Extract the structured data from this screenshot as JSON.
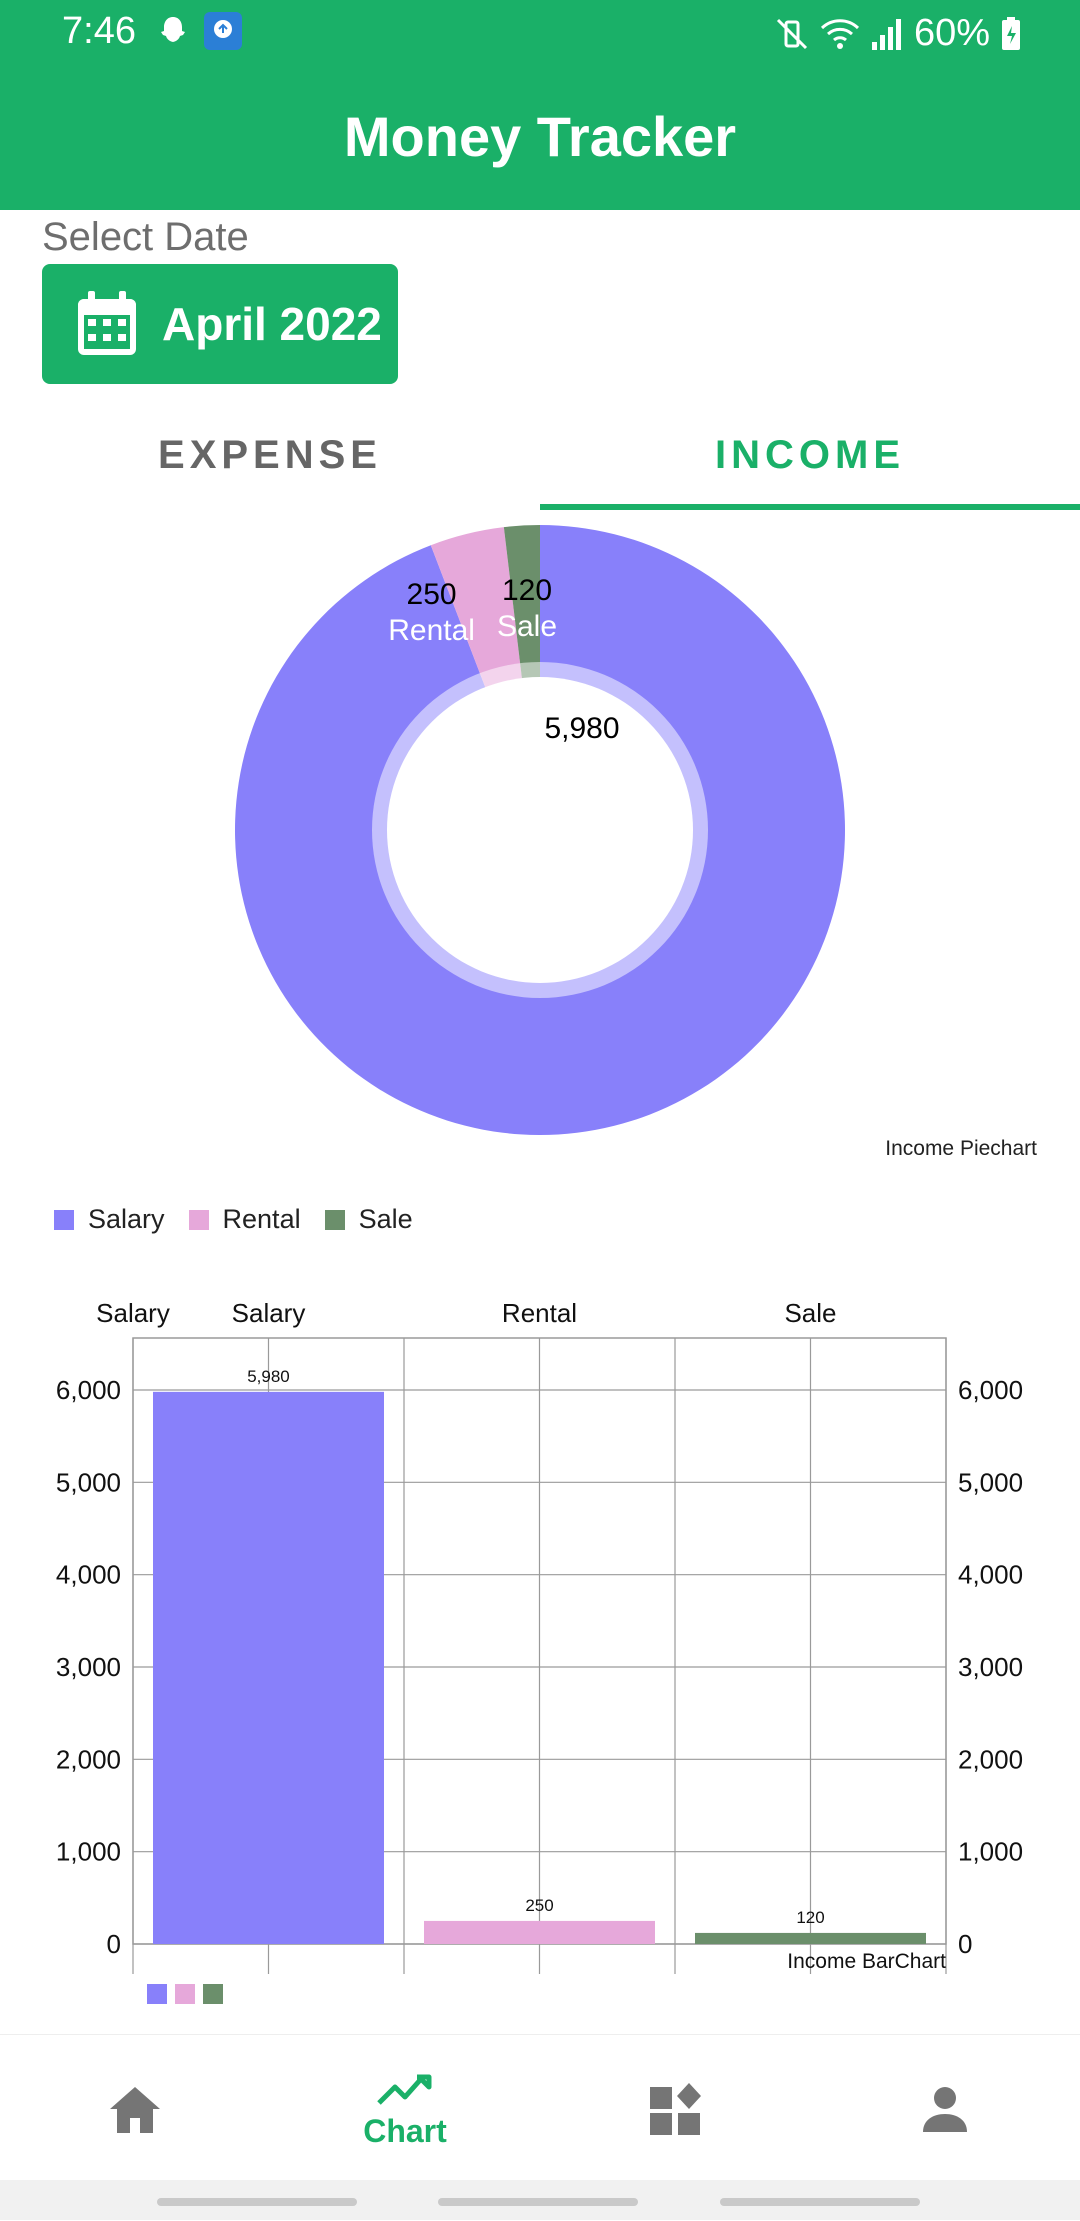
{
  "status_bar": {
    "time": "7:46",
    "battery": "60%",
    "icons": [
      "snapchat-icon",
      "cloud-upload-icon",
      "mute-vibrate-icon",
      "wifi-icon",
      "signal-icon",
      "battery-charging-icon"
    ]
  },
  "app": {
    "title": "Money Tracker"
  },
  "date": {
    "label": "Select Date",
    "value": "April 2022"
  },
  "tabs": [
    {
      "label": "EXPENSE",
      "selected": false
    },
    {
      "label": "INCOME",
      "selected": true
    }
  ],
  "colors": {
    "primary": "#1ab068",
    "salary": "#8880fa",
    "rental": "#e6a8da",
    "sale": "#6b8f6b"
  },
  "pie": {
    "description": "Income Piechart",
    "slices": [
      {
        "label": "Salary",
        "value": 5980,
        "display": "5,980",
        "color": "#8880fa"
      },
      {
        "label": "Rental",
        "value": 250,
        "display": "250",
        "color": "#e6a8da"
      },
      {
        "label": "Sale",
        "value": 120,
        "display": "120",
        "color": "#6b8f6b"
      }
    ]
  },
  "legend": [
    {
      "label": "Salary",
      "color": "#8880fa"
    },
    {
      "label": "Rental",
      "color": "#e6a8da"
    },
    {
      "label": "Sale",
      "color": "#6b8f6b"
    }
  ],
  "chart_data": {
    "type": "bar",
    "description": "Income BarChart",
    "categories": [
      "Salary",
      "Rental",
      "Sale"
    ],
    "top_labels": [
      "Salary",
      "Salary",
      "Rental",
      "Sale"
    ],
    "values": [
      5980,
      250,
      120
    ],
    "value_labels": [
      "5,980",
      "250",
      "120"
    ],
    "colors": [
      "#8880fa",
      "#e6a8da",
      "#6b8f6b"
    ],
    "ylim": [
      0,
      6000
    ],
    "yticks": [
      0,
      1000,
      2000,
      3000,
      4000,
      5000,
      6000
    ],
    "ytick_labels": [
      "0",
      "1,000",
      "2,000",
      "3,000",
      "4,000",
      "5,000",
      "6,000"
    ],
    "grid": true
  },
  "bottom_nav": [
    {
      "icon": "home-icon",
      "label": "",
      "selected": false
    },
    {
      "icon": "chart-line-icon",
      "label": "Chart",
      "selected": true
    },
    {
      "icon": "widgets-icon",
      "label": "",
      "selected": false
    },
    {
      "icon": "person-icon",
      "label": "",
      "selected": false
    }
  ]
}
